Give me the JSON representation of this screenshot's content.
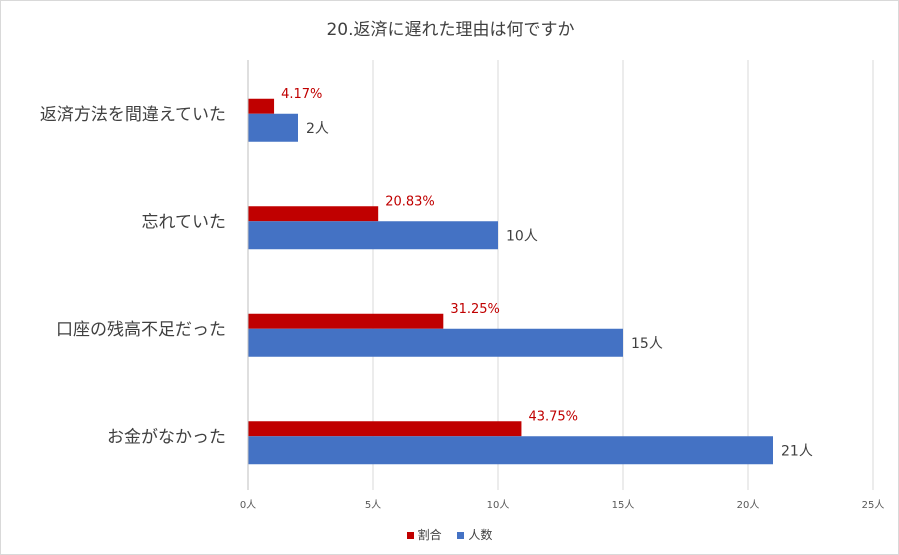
{
  "chart_data": {
    "type": "bar",
    "orientation": "horizontal",
    "title": "20.返済に遅れた理由は何ですか",
    "categories": [
      "返済方法を間違えていた",
      "忘れていた",
      "口座の残高不足だった",
      "お金がなかった"
    ],
    "series": [
      {
        "name": "割合",
        "values": [
          0.0417,
          0.2083,
          0.3125,
          0.4375
        ],
        "labels": [
          "4.17%",
          "20.83%",
          "31.25%",
          "43.75%"
        ],
        "color": "#c00000",
        "label_color": "#c00000"
      },
      {
        "name": "人数",
        "values": [
          2,
          10,
          15,
          21
        ],
        "labels": [
          "2人",
          "10人",
          "15人",
          "21人"
        ],
        "color": "#4472c4",
        "label_color": "#404040"
      }
    ],
    "xlim": [
      0,
      25
    ],
    "x_ticks": [
      "0人",
      "5人",
      "10人",
      "15人",
      "20人",
      "25人"
    ],
    "grid": true,
    "legend_position": "bottom"
  }
}
